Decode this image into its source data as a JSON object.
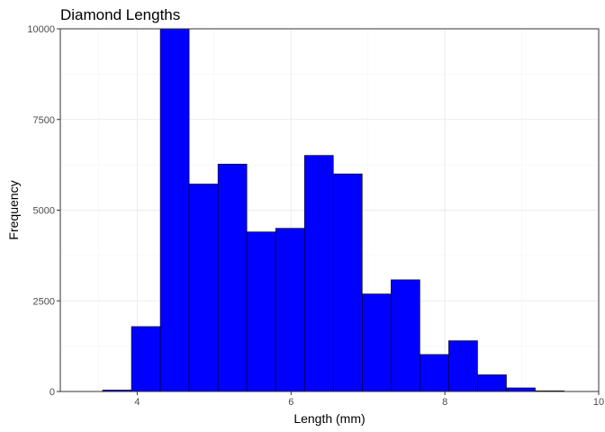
{
  "chart_data": {
    "type": "bar",
    "title": "Diamond Lengths",
    "xlabel": "Length (mm)",
    "ylabel": "Frequency",
    "xlim": [
      3.0,
      10.0
    ],
    "ylim": [
      0,
      10000
    ],
    "xticks": [
      4,
      6,
      8,
      10
    ],
    "yticks": [
      0,
      2500,
      5000,
      7500,
      10000
    ],
    "grid": true,
    "bin_width": 0.375,
    "bins": [
      {
        "x0": 3.55,
        "x1": 3.925,
        "count": 40
      },
      {
        "x0": 3.925,
        "x1": 4.3,
        "count": 1790
      },
      {
        "x0": 4.3,
        "x1": 4.675,
        "count": 10000
      },
      {
        "x0": 4.675,
        "x1": 5.05,
        "count": 5720
      },
      {
        "x0": 5.05,
        "x1": 5.425,
        "count": 6270
      },
      {
        "x0": 5.425,
        "x1": 5.8,
        "count": 4400
      },
      {
        "x0": 5.8,
        "x1": 6.175,
        "count": 4500
      },
      {
        "x0": 6.175,
        "x1": 6.55,
        "count": 6510
      },
      {
        "x0": 6.55,
        "x1": 6.925,
        "count": 6000
      },
      {
        "x0": 6.925,
        "x1": 7.3,
        "count": 2690
      },
      {
        "x0": 7.3,
        "x1": 7.675,
        "count": 3080
      },
      {
        "x0": 7.675,
        "x1": 8.05,
        "count": 1020
      },
      {
        "x0": 8.05,
        "x1": 8.425,
        "count": 1400
      },
      {
        "x0": 8.425,
        "x1": 8.8,
        "count": 460
      },
      {
        "x0": 8.8,
        "x1": 9.175,
        "count": 100
      },
      {
        "x0": 9.175,
        "x1": 9.55,
        "count": 20
      }
    ],
    "colors": {
      "bar_fill": "#0000ff",
      "bar_stroke": "#000000",
      "panel_background": "#ffffff"
    }
  }
}
